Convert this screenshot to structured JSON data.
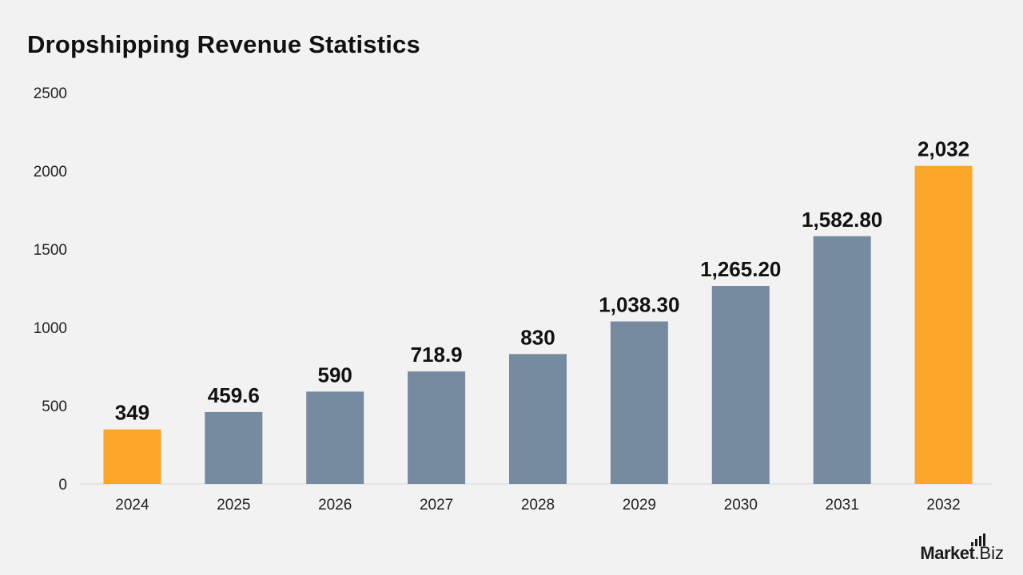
{
  "chart_data": {
    "type": "bar",
    "title": "Dropshipping Revenue Statistics",
    "categories": [
      "2024",
      "2025",
      "2026",
      "2027",
      "2028",
      "2029",
      "2030",
      "2031",
      "2032"
    ],
    "values": [
      349,
      459.6,
      590,
      718.9,
      830,
      1038.3,
      1265.2,
      1582.8,
      2032
    ],
    "data_labels": [
      "349",
      "459.6",
      "590",
      "718.9",
      "830",
      "1,038.30",
      "1,265.20",
      "1,582.80",
      "2,032"
    ],
    "yticks": [
      "0",
      "500",
      "1000",
      "1500",
      "2000",
      "2500"
    ],
    "ylim": [
      0,
      2500
    ],
    "xlabel": "",
    "ylabel": "",
    "grid": false,
    "colors": {
      "default_bar": "#768aa0",
      "highlight_bar": "#fca72a",
      "highlight_categories": [
        "2024",
        "2032"
      ]
    }
  },
  "brand": {
    "name": "Market",
    "suffix": ".Biz"
  }
}
